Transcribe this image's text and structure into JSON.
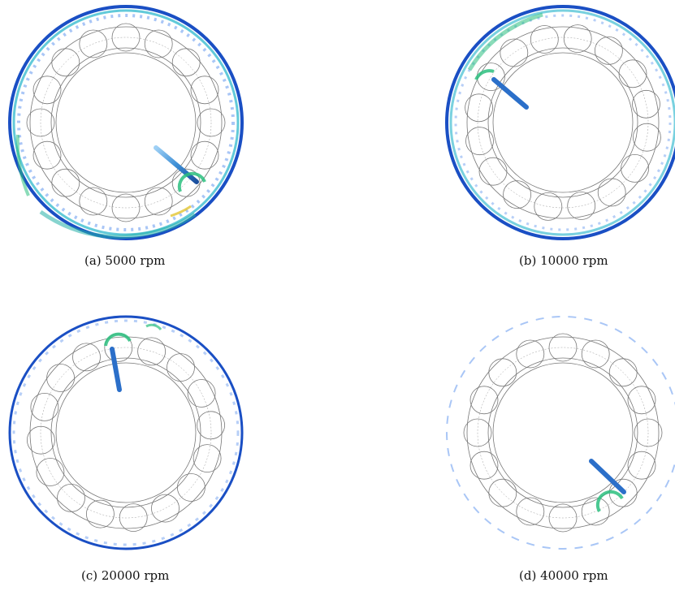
{
  "figure": {
    "panels": [
      {
        "caption": "(a) 5000 rpm",
        "speed_rpm": 5000
      },
      {
        "caption": "(b) 10000 rpm",
        "speed_rpm": 10000
      },
      {
        "caption": "(c) 20000 rpm",
        "speed_rpm": 20000
      },
      {
        "caption": "(d) 40000 rpm",
        "speed_rpm": 40000
      }
    ]
  }
}
